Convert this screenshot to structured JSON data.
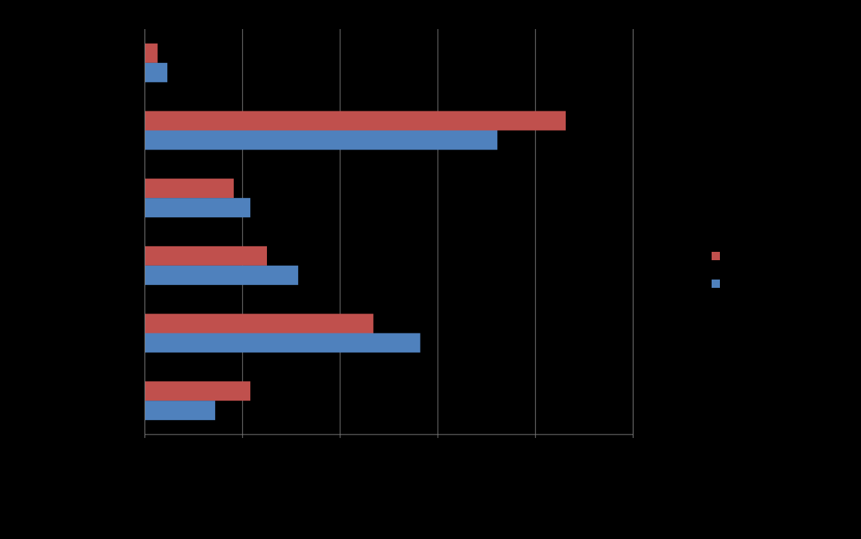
{
  "chart_data": {
    "type": "bar",
    "orientation": "horizontal",
    "title": "",
    "xlabel": "",
    "ylabel": "",
    "xlim": [
      0,
      50
    ],
    "x_gridlines": [
      0,
      10,
      20,
      30,
      40,
      50
    ],
    "grid": true,
    "legend_position": "right",
    "categories_count": 6,
    "series": [
      {
        "color": "#c0504d",
        "values": [
          1.3,
          43.1,
          9.1,
          12.5,
          23.4,
          10.8
        ]
      },
      {
        "color": "#4f81bd",
        "values": [
          2.3,
          36.1,
          10.8,
          15.7,
          28.2,
          7.2
        ]
      }
    ],
    "background": "#000000",
    "gridline_color": "#7f7f7f"
  }
}
